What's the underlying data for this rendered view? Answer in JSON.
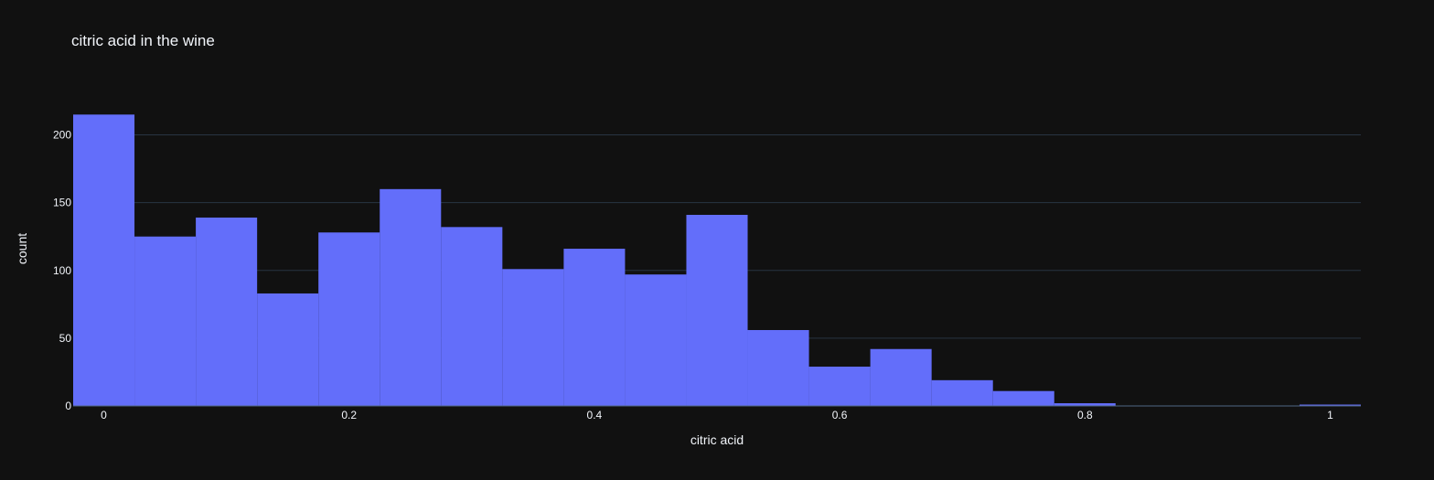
{
  "colors": {
    "background": "#111111",
    "bar": "#636efa",
    "grid": "#283442",
    "text": "#f2f5fa"
  },
  "chart_data": {
    "type": "bar",
    "title": "citric acid in the wine",
    "xlabel": "citric acid",
    "ylabel": "count",
    "bin_width": 0.05,
    "bin_starts": [
      -0.025,
      0.025,
      0.075,
      0.125,
      0.175,
      0.225,
      0.275,
      0.325,
      0.375,
      0.425,
      0.475,
      0.525,
      0.575,
      0.625,
      0.675,
      0.725,
      0.775,
      0.825,
      0.875,
      0.925,
      0.975
    ],
    "values": [
      215,
      125,
      139,
      83,
      128,
      160,
      132,
      101,
      116,
      97,
      141,
      56,
      29,
      42,
      19,
      11,
      2,
      0,
      0,
      0,
      1
    ],
    "xlim": [
      -0.025,
      1.025
    ],
    "ylim": [
      0,
      226
    ],
    "xticks": [
      0,
      0.2,
      0.4,
      0.6,
      0.8,
      1
    ],
    "xtick_labels": [
      "0",
      "0.2",
      "0.4",
      "0.6",
      "0.8",
      "1"
    ],
    "yticks": [
      0,
      50,
      100,
      150,
      200
    ],
    "ytick_labels": [
      "0",
      "50",
      "100",
      "150",
      "200"
    ],
    "grid": true,
    "legend": "none"
  }
}
